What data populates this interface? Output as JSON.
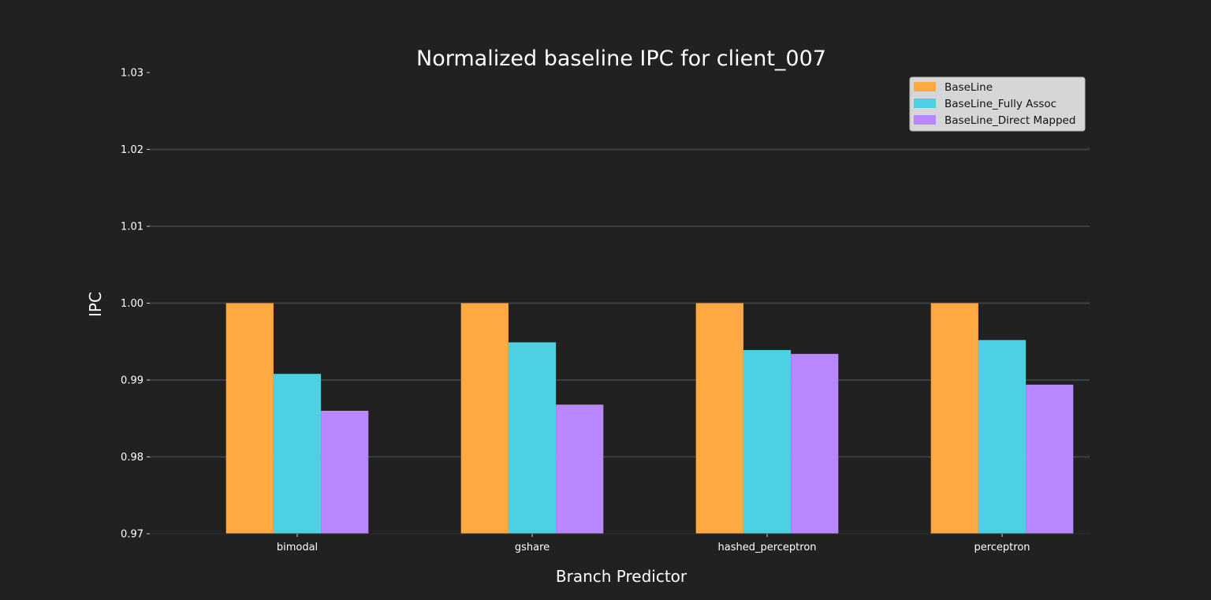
{
  "chart_data": {
    "type": "bar",
    "title": "Normalized baseline IPC for client_007",
    "xlabel": "Branch Predictor",
    "ylabel": "IPC",
    "ylim": [
      0.97,
      1.03
    ],
    "yticks": [
      "0.97",
      "0.98",
      "0.99",
      "1.00",
      "1.01",
      "1.02",
      "1.03"
    ],
    "grid": true,
    "legend_position": "top-right",
    "categories": [
      "bimodal",
      "gshare",
      "hashed_perceptron",
      "perceptron"
    ],
    "series": [
      {
        "name": "BaseLine",
        "color": "#ffa943",
        "values": [
          1.0,
          1.0,
          1.0,
          1.0
        ]
      },
      {
        "name": "BaseLine_Fully Assoc",
        "color": "#4dd0e1",
        "values": [
          0.9908,
          0.9949,
          0.9939,
          0.9952
        ]
      },
      {
        "name": "BaseLine_Direct Mapped",
        "color": "#b987ff",
        "values": [
          0.986,
          0.9868,
          0.9934,
          0.9894
        ]
      }
    ]
  }
}
